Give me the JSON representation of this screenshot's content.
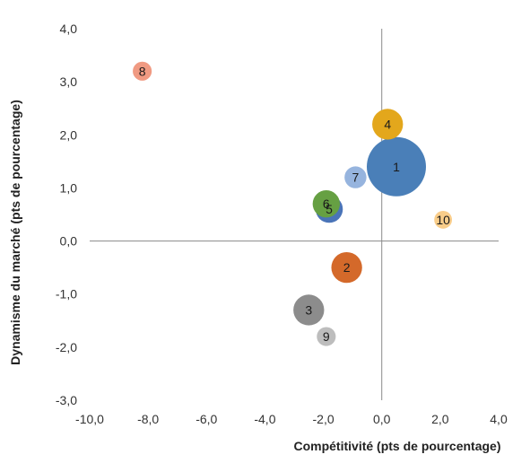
{
  "chart_data": {
    "type": "scatter",
    "variant": "bubble",
    "xlabel": "Compétitivité  (pts de pourcentage)",
    "ylabel": "Dynamisme  du marché (pts de pourcentage)",
    "xlim": [
      -10,
      4
    ],
    "ylim": [
      -3,
      4
    ],
    "x_ticks": [
      -10,
      -8,
      -6,
      -4,
      -2,
      0,
      2,
      4
    ],
    "y_ticks": [
      -3,
      -2,
      -1,
      0,
      1,
      2,
      3,
      4
    ],
    "x_tick_labels": [
      "-10,0",
      "-8,0",
      "-6,0",
      "-4,0",
      "-2,0",
      "0,0",
      "2,0",
      "4,0"
    ],
    "y_tick_labels": [
      "-3,0",
      "-2,0",
      "-1,0",
      "0,0",
      "1,0",
      "2,0",
      "3,0",
      "4,0"
    ],
    "grid": false,
    "points": [
      {
        "label": "1",
        "x": 0.5,
        "y": 1.4,
        "size": 1.0,
        "color": "#4a7fb8"
      },
      {
        "label": "2",
        "x": -1.2,
        "y": -0.5,
        "size": 0.52,
        "color": "#d4692a"
      },
      {
        "label": "3",
        "x": -2.5,
        "y": -1.3,
        "size": 0.52,
        "color": "#8c8c8c"
      },
      {
        "label": "4",
        "x": 0.2,
        "y": 2.2,
        "size": 0.52,
        "color": "#e3a71c"
      },
      {
        "label": "5",
        "x": -1.8,
        "y": 0.6,
        "size": 0.46,
        "color": "#4a74b8"
      },
      {
        "label": "6",
        "x": -1.9,
        "y": 0.7,
        "size": 0.46,
        "color": "#66a043"
      },
      {
        "label": "7",
        "x": -0.9,
        "y": 1.2,
        "size": 0.37,
        "color": "#96b4de"
      },
      {
        "label": "8",
        "x": -8.2,
        "y": 3.2,
        "size": 0.32,
        "color": "#f09a82"
      },
      {
        "label": "9",
        "x": -1.9,
        "y": -1.8,
        "size": 0.32,
        "color": "#bdbdbd"
      },
      {
        "label": "10",
        "x": 2.1,
        "y": 0.4,
        "size": 0.3,
        "color": "#f9cd8a"
      }
    ]
  }
}
